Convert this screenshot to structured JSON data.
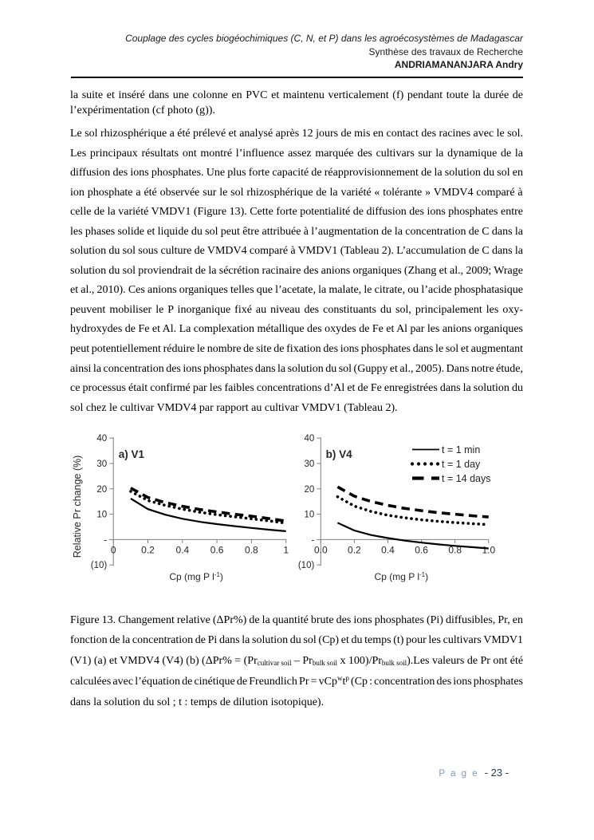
{
  "header": {
    "line1": "Couplage des cycles biogéochimiques (C, N, et P) dans les agroécosystèmes de Madagascar",
    "line2": "Synthèse des travaux de Recherche",
    "line3": "ANDRIAMANANJARA Andry"
  },
  "paragraphs": [
    {
      "lines": [
        "la suite et inséré dans une colonne en PVC et maintenu verticalement (f) pendant toute la durée de",
        "l’expérimentation (cf photo (g))."
      ]
    },
    {
      "lines": [
        "Le sol rhizosphérique a été prélevé et analysé après 12 jours de mis en contact des racines avec le sol.",
        "Les principaux résultats ont montré l’influence assez marquée des cultivars sur la dynamique de la",
        "diffusion des ions phosphates. Une plus forte capacité de réapprovisionnement de la solution du sol en",
        "ion phosphate a été observée sur le sol rhizosphérique  de la variété « tolérante » VMDV4 comparé à",
        "celle de la variété VMDV1 (Figure 13). Cette forte potentialité de diffusion des ions phosphates entre",
        "les phases solide et liquide du sol peut être attribuée à l’augmentation de la concentration de C dans la",
        "solution du sol sous culture de VMDV4 comparé à VMDV1 (Tableau 2). L’accumulation de C dans la",
        "solution du sol proviendrait de la sécrétion racinaire des anions organiques (Zhang et al., 2009; Wrage",
        "et al., 2010). Ces anions organiques telles que l’acetate, la malate, le citrate, ou l’acide phosphatasique",
        "peuvent mobiliser le P inorganique fixé au niveau des constituants du sol, principalement les oxy-",
        "hydroxydes de Fe et Al. La complexation métallique des oxydes de Fe et Al par les anions organiques",
        "peut potentiellement réduire le nombre de site de fixation des ions phosphates dans le sol et augmentant",
        "ainsi la concentration des ions phosphates dans la solution du sol (Guppy et al., 2005). Dans notre étude,",
        "ce processus était confirmé par les faibles concentrations d’Al et de Fe enregistrées dans la solution du",
        "sol chez le cultivar VMDV4 par rapport au cultivar VMDV1 (Tableau 2)."
      ]
    }
  ],
  "caption": {
    "lines": [
      "Figure 13. Changement relative (ΔPr%) de la quantité brute des ions phosphates (Pi) diffusibles, Pr, en",
      "fonction de la concentration de Pi dans la solution du sol (Cp) et du temps (t) pour les cultivars VMDV1",
      "(V1) (a) et VMDV4 (V4) (b) (ΔPr%  = (Pr<sub>cultivar soil</sub> – Pr<sub>bulk soil</sub> x 100)/Pr<sub>bulk soil</sub>).Les valeurs de Pr ont été",
      "calculées avec l’équation de cinétique de Freundlich Pr = vCp<sup>w</sup>t<sup>p</sup> (Cp : concentration des ions phosphates",
      "dans la solution du sol ; t : temps de dilution isotopique)."
    ]
  },
  "chart_data": [
    {
      "type": "line",
      "title": "a) V1",
      "xlabel": "Cp (mg P l-1)",
      "ylabel": "Relative Pr change (%)",
      "xlim": [
        0,
        1
      ],
      "ylim": [
        -10,
        40
      ],
      "xtick_labels": [
        "0",
        "0.2",
        "0.4",
        "0.6",
        "0.8",
        "1"
      ],
      "ytick_labels": [
        "40",
        "30",
        "20",
        "10",
        "-",
        "(10)"
      ],
      "ytick_values": [
        40,
        30,
        20,
        10,
        0,
        -10
      ],
      "x": [
        0.1,
        0.2,
        0.3,
        0.4,
        0.5,
        0.6,
        0.7,
        0.8,
        0.9,
        1.0
      ],
      "series": [
        {
          "name": "t = 1 min",
          "style": "solid",
          "values": [
            16.2,
            12.0,
            9.8,
            8.2,
            7.0,
            6.1,
            5.3,
            4.6,
            3.9,
            3.3
          ]
        },
        {
          "name": "t = 1 day",
          "style": "dotted",
          "values": [
            19.0,
            15.4,
            13.5,
            12.0,
            10.8,
            9.8,
            9.0,
            8.2,
            7.4,
            6.5
          ]
        },
        {
          "name": "t = 14 days",
          "style": "dashed",
          "values": [
            20.3,
            16.6,
            14.6,
            13.1,
            11.9,
            10.9,
            10.0,
            9.2,
            8.3,
            7.3
          ]
        }
      ],
      "legend": false
    },
    {
      "type": "line",
      "title": "b) V4",
      "xlabel": "Cp (mg P l-1)",
      "ylabel": "",
      "xlim": [
        0,
        1
      ],
      "ylim": [
        -10,
        40
      ],
      "xtick_labels": [
        "0.0",
        "0.2",
        "0.4",
        "0.6",
        "0.8",
        "1.0"
      ],
      "ytick_labels": [
        "40",
        "30",
        "20",
        "10",
        "-",
        "(10)"
      ],
      "ytick_values": [
        40,
        30,
        20,
        10,
        0,
        -10
      ],
      "x": [
        0.1,
        0.2,
        0.3,
        0.4,
        0.5,
        0.6,
        0.7,
        0.8,
        0.9,
        1.0
      ],
      "series": [
        {
          "name": "t = 1 min",
          "style": "solid",
          "values": [
            6.6,
            3.6,
            1.8,
            0.6,
            -0.4,
            -1.2,
            -1.9,
            -2.5,
            -3.0,
            -3.5
          ]
        },
        {
          "name": "t = 1 day",
          "style": "dotted",
          "values": [
            16.9,
            13.2,
            11.1,
            9.6,
            8.6,
            7.8,
            7.2,
            6.7,
            6.3,
            5.9
          ]
        },
        {
          "name": "t = 14 days",
          "style": "dashed",
          "values": [
            20.8,
            17.1,
            15.0,
            13.5,
            12.3,
            11.4,
            10.6,
            10.0,
            9.4,
            8.9
          ]
        }
      ],
      "legend": true
    }
  ],
  "footer": {
    "page_word": "P a g e",
    "page_number": "- 23 -"
  },
  "colors": {
    "text": "#000000",
    "axis": "#7f7f7f",
    "series": "#000000",
    "page_word": "#8496b0",
    "page_number": "#2f3a4d"
  }
}
